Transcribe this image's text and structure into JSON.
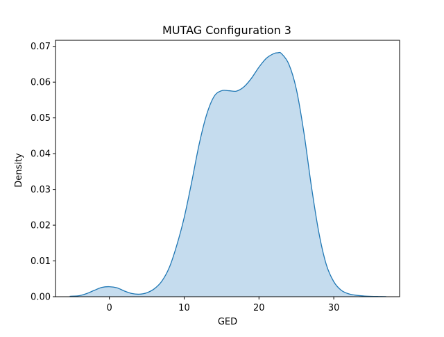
{
  "chart_data": {
    "type": "area",
    "title": "MUTAG Configuration 3",
    "xlabel": "GED",
    "ylabel": "Density",
    "xlim": [
      -7.2,
      38.8
    ],
    "ylim": [
      0,
      0.0717
    ],
    "xticks": [
      0,
      10,
      20,
      30
    ],
    "yticks": [
      0.0,
      0.01,
      0.02,
      0.03,
      0.04,
      0.05,
      0.06,
      0.07
    ],
    "xtick_labels": [
      "0",
      "10",
      "20",
      "30"
    ],
    "ytick_labels": [
      "0.00",
      "0.01",
      "0.02",
      "0.03",
      "0.04",
      "0.05",
      "0.06",
      "0.07"
    ],
    "grid": false,
    "legend": null,
    "series": [
      {
        "x": [
          -5.3,
          -4,
          -3,
          -2,
          -1,
          0,
          1,
          2,
          3,
          4,
          5,
          6,
          7,
          8,
          9,
          10,
          11,
          12,
          13,
          14,
          15,
          16,
          17,
          18,
          19,
          20,
          21,
          22,
          22.5,
          23,
          24,
          25,
          26,
          27,
          28,
          29,
          30,
          31,
          32,
          33,
          34,
          35,
          36,
          37
        ],
        "y": [
          0.0001,
          0.0003,
          0.0009,
          0.0018,
          0.0026,
          0.0028,
          0.0025,
          0.0016,
          0.0009,
          0.0007,
          0.0011,
          0.0022,
          0.0043,
          0.0081,
          0.0143,
          0.0221,
          0.032,
          0.0426,
          0.0509,
          0.056,
          0.0576,
          0.0576,
          0.0575,
          0.0587,
          0.0611,
          0.0642,
          0.0667,
          0.068,
          0.0682,
          0.068,
          0.065,
          0.058,
          0.046,
          0.031,
          0.018,
          0.009,
          0.0042,
          0.0018,
          0.0008,
          0.0004,
          0.0002,
          0.0001,
          5e-05,
          2e-05
        ]
      }
    ],
    "colors": {
      "line": "#1f77b4",
      "fill": "#c5dcee",
      "axes": "#000000"
    }
  }
}
